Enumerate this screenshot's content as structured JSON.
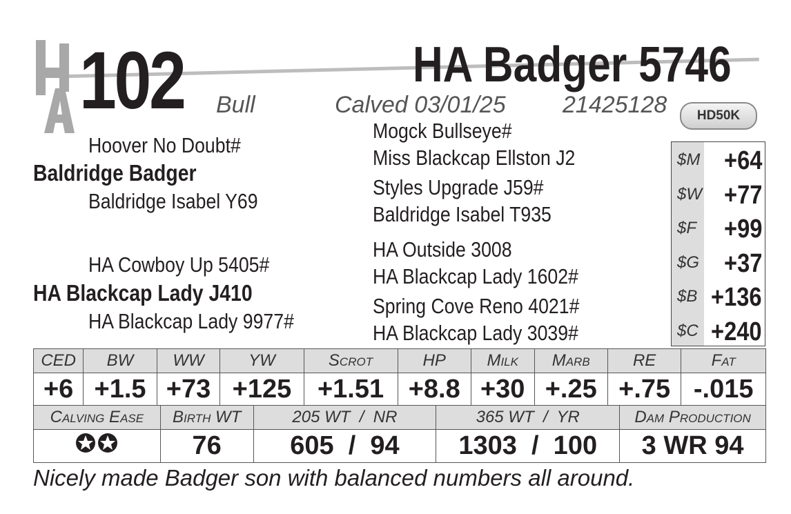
{
  "header": {
    "logo": "HA",
    "lot_number": "102",
    "animal_name": "HA Badger 5746",
    "sex": "Bull",
    "calved": "Calved 03/01/25",
    "registration": "21425128",
    "genomic_badge": "HD50K"
  },
  "pedigree": {
    "sire": "Baldridge Badger",
    "sire_sire": "Hoover No Doubt#",
    "sire_dam": "Baldridge Isabel Y69",
    "dam": "HA Blackcap Lady J410",
    "dam_sire": "HA Cowboy Up 5405#",
    "dam_dam": "HA Blackcap Lady 9977#",
    "third_gen": [
      "Mogck Bullseye#",
      "Miss Blackcap Ellston J2",
      "Styles Upgrade J59#",
      "Baldridge Isabel T935",
      "HA Outside 3008",
      "HA Blackcap Lady 1602#",
      "Spring Cove Reno 4021#",
      "HA Blackcap Lady 3039#"
    ]
  },
  "indexes": [
    {
      "k": "$M",
      "v": "+64"
    },
    {
      "k": "$W",
      "v": "+77"
    },
    {
      "k": "$F",
      "v": "+99"
    },
    {
      "k": "$G",
      "v": "+37"
    },
    {
      "k": "$B",
      "v": "+136"
    },
    {
      "k": "$C",
      "v": "+240"
    }
  ],
  "epds": {
    "headers": [
      "CED",
      "BW",
      "WW",
      "YW",
      "Scrot",
      "HP",
      "Milk",
      "Marb",
      "RE",
      "Fat"
    ],
    "values": [
      "+6",
      "+1.5",
      "+73",
      "+125",
      "+1.51",
      "+8.8",
      "+30",
      "+.25",
      "+.75",
      "-.015"
    ]
  },
  "performance": {
    "headers": [
      "Calving Ease",
      "Birth WT",
      "205 WT  /  NR",
      "365 WT  /  YR",
      "Dam Production"
    ],
    "values": [
      "",
      "76",
      "605  /  94",
      "1303  /  100",
      "3 WR 94"
    ],
    "calving_ease_stars": 2
  },
  "comment": "Nicely made Badger son with balanced numbers all around."
}
